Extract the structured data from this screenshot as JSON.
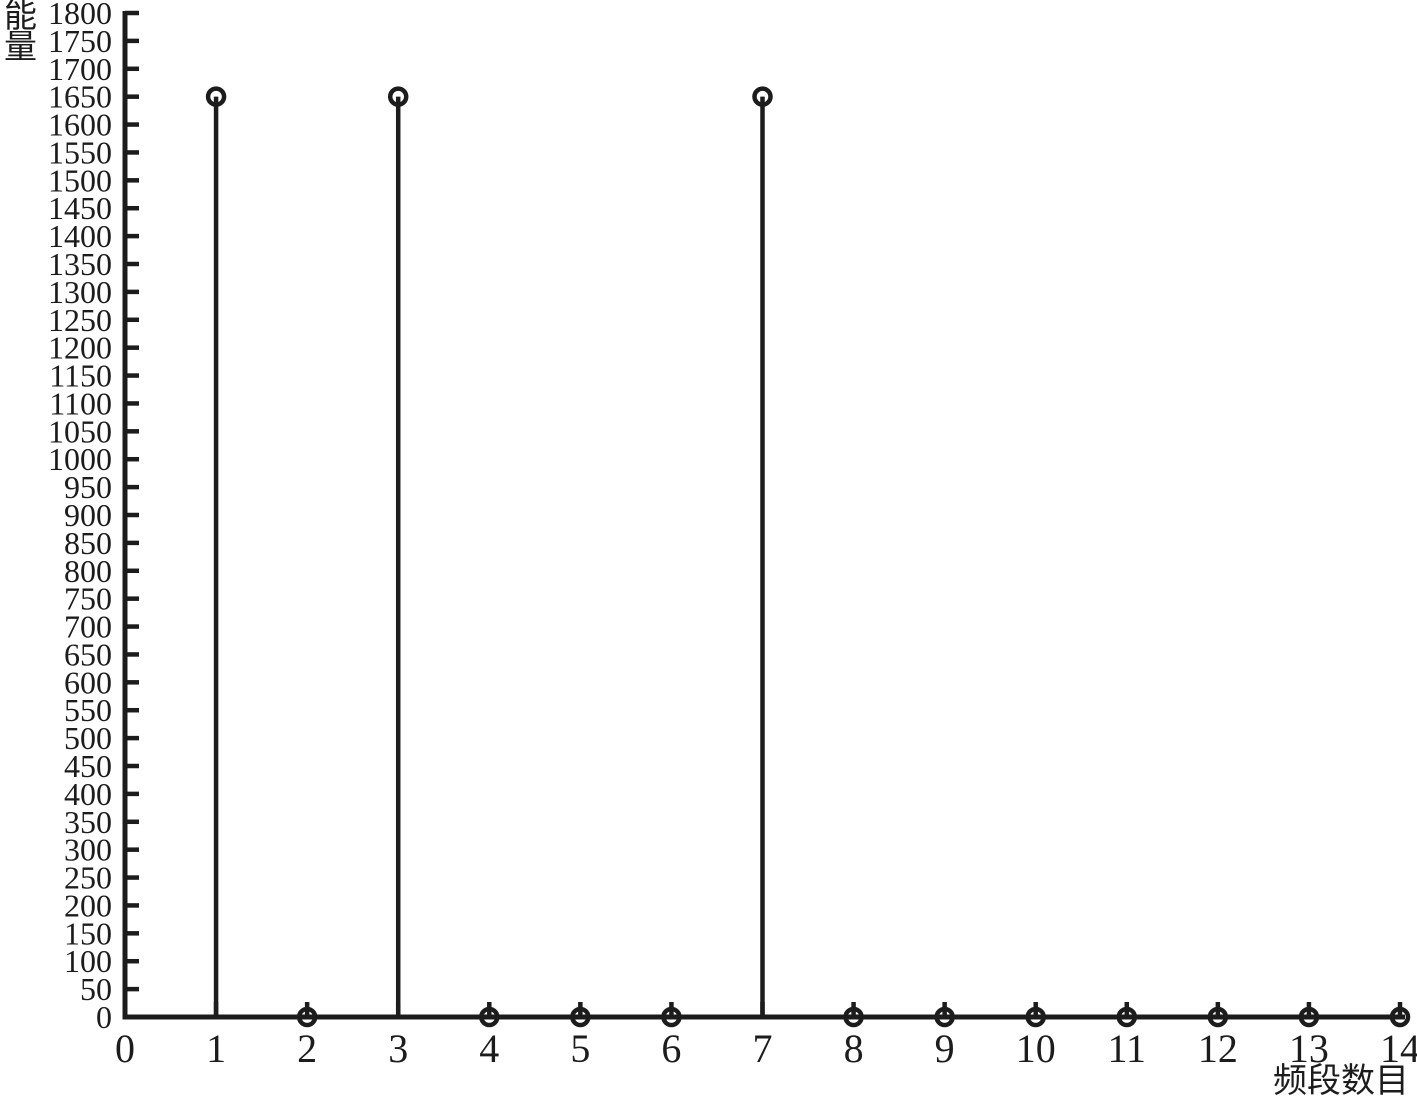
{
  "page": {
    "background": "#ffffff",
    "ink_color": "#1c1c1c"
  },
  "chart_data": {
    "type": "stem",
    "title": "",
    "ylabel": "能量",
    "xlabel": "频段数目",
    "x": [
      1,
      2,
      3,
      4,
      5,
      6,
      7,
      8,
      9,
      10,
      11,
      12,
      13,
      14
    ],
    "values": [
      1650,
      0,
      1650,
      0,
      0,
      0,
      1650,
      0,
      0,
      0,
      0,
      0,
      0,
      0
    ],
    "xlim": [
      0,
      14
    ],
    "ylim": [
      0,
      1800
    ],
    "x_ticks": [
      0,
      1,
      2,
      3,
      4,
      5,
      6,
      7,
      8,
      9,
      10,
      11,
      12,
      13,
      14
    ],
    "y_ticks": [
      0,
      50,
      100,
      150,
      200,
      250,
      300,
      350,
      400,
      450,
      500,
      550,
      600,
      650,
      700,
      750,
      800,
      850,
      900,
      950,
      1000,
      1050,
      1100,
      1150,
      1200,
      1250,
      1300,
      1350,
      1400,
      1450,
      1500,
      1550,
      1600,
      1650,
      1700,
      1750,
      1800
    ],
    "marker": "open-circle",
    "grid": false,
    "legend": "none",
    "ink_color": "#1c1c1c",
    "background": "#ffffff"
  }
}
